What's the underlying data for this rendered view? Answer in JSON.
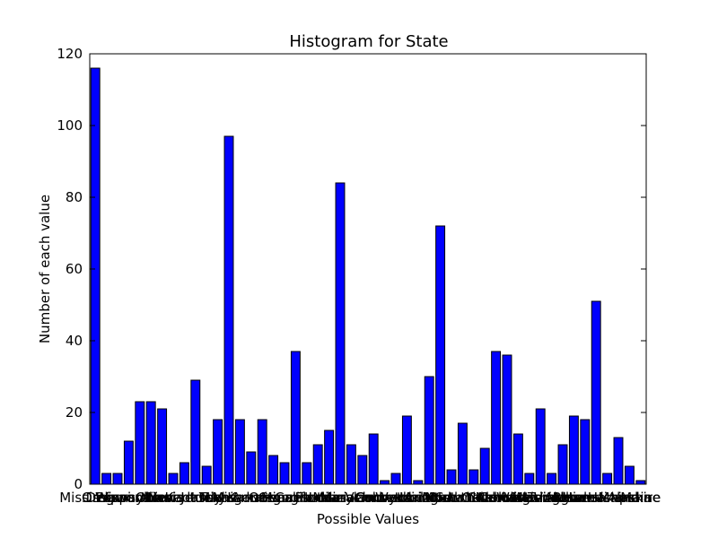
{
  "chart_data": {
    "type": "bar",
    "title": "Histogram for State",
    "xlabel": "Possible Values",
    "ylabel": "Number of each value",
    "ylim": [
      0,
      120
    ],
    "yticks": [
      0,
      20,
      40,
      60,
      80,
      100,
      120
    ],
    "colors": {
      "bar": "#0000ff",
      "edge": "#000000"
    },
    "categories": [
      "Mississippi",
      "Oregon",
      "Delaware",
      "Wisconsin",
      "Pennsylvania",
      "Ohio",
      "Illinois",
      "Nevada",
      "New Jersey",
      "Kentucky",
      "Iowa",
      "Texas",
      "Michigan",
      "Missouri",
      "Kansas",
      "Arkansas",
      "Oregon",
      "Georgia",
      "Minnesota",
      "California",
      "Florida",
      "Indiana",
      "Louisiana",
      "Maryland",
      "Massachusetts",
      "Vermont",
      "Colorado",
      "Connecticut",
      "Wyoming",
      "Idaho",
      "Arizona",
      "Utah",
      "Montana",
      "New York",
      "North Carolina",
      "South Carolina",
      "Oklahoma",
      "Nebraska",
      "New Mexico",
      "Virginia",
      "West Virginia",
      "Washington",
      "Tennessee",
      "Alabama",
      "Hawaii",
      "Rhode Island",
      "New Hampshire",
      "Maine",
      "Alaska",
      "Maine"
    ],
    "values": [
      116,
      3,
      3,
      12,
      23,
      23,
      21,
      3,
      6,
      29,
      5,
      18,
      97,
      18,
      9,
      18,
      8,
      6,
      37,
      6,
      11,
      15,
      84,
      11,
      8,
      14,
      1,
      3,
      19,
      1,
      30,
      72,
      4,
      17,
      4,
      10,
      37,
      36,
      14,
      3,
      21,
      3,
      11,
      19,
      18,
      51,
      3,
      13,
      5,
      1
    ]
  }
}
